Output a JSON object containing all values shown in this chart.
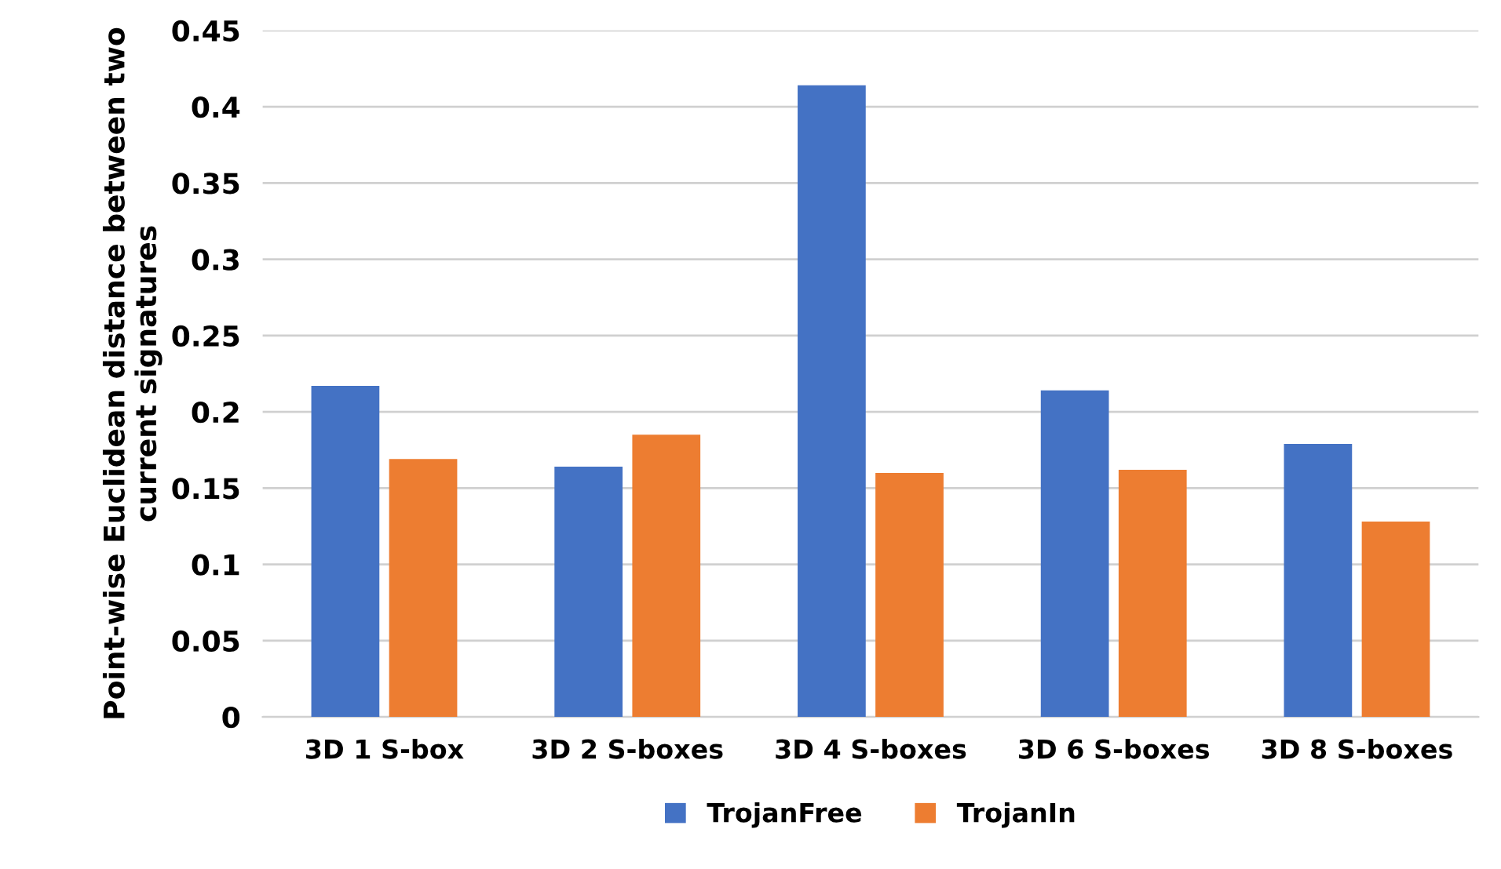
{
  "chart_data": {
    "type": "bar",
    "ylabel": "Point-wise Euclidean distance between two current signatures",
    "categories": [
      "3D 1 S-box",
      "3D 2 S-boxes",
      "3D 4 S-boxes",
      "3D 6 S-boxes",
      "3D 8 S-boxes"
    ],
    "series": [
      {
        "name": "TrojanFree",
        "color": "#4472c4",
        "values": [
          0.217,
          0.164,
          0.414,
          0.214,
          0.179
        ]
      },
      {
        "name": "TrojanIn",
        "color": "#ed7d31",
        "values": [
          0.169,
          0.185,
          0.16,
          0.162,
          0.128
        ]
      }
    ],
    "ylim": [
      0,
      0.45
    ],
    "yticks": [
      0,
      0.05,
      0.1,
      0.15,
      0.2,
      0.25,
      0.3,
      0.35,
      0.4,
      0.45
    ],
    "grid": "y",
    "legend": "bottom"
  }
}
